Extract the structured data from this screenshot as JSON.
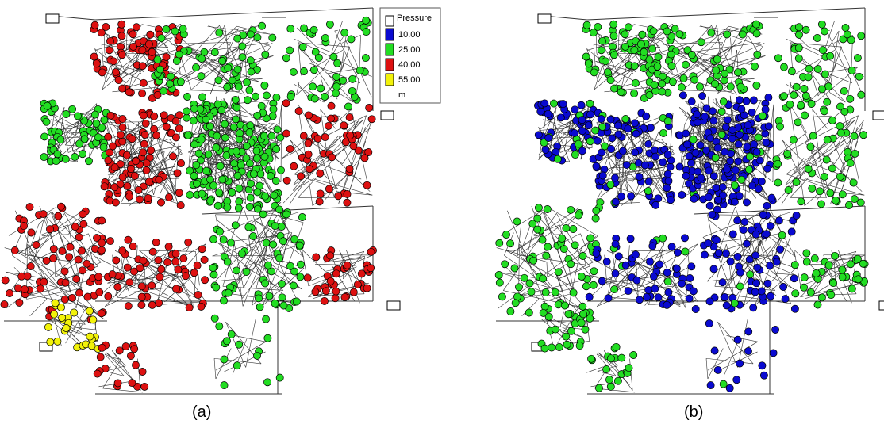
{
  "legend": {
    "title": "Pressure",
    "items": [
      {
        "label": "10.00",
        "color": "#0a0ad0"
      },
      {
        "label": "25.00",
        "color": "#22dd22"
      },
      {
        "label": "40.00",
        "color": "#dd1111"
      },
      {
        "label": "55.00",
        "color": "#f2f20a"
      }
    ],
    "unit": "m"
  },
  "panels": [
    {
      "caption": "(a)"
    },
    {
      "caption": "(b)"
    }
  ],
  "colors": {
    "low": "#0a0ad0",
    "mid": "#22dd22",
    "high": "#dd1111",
    "very_high": "#f2f20a",
    "pipe": "#333333"
  }
}
